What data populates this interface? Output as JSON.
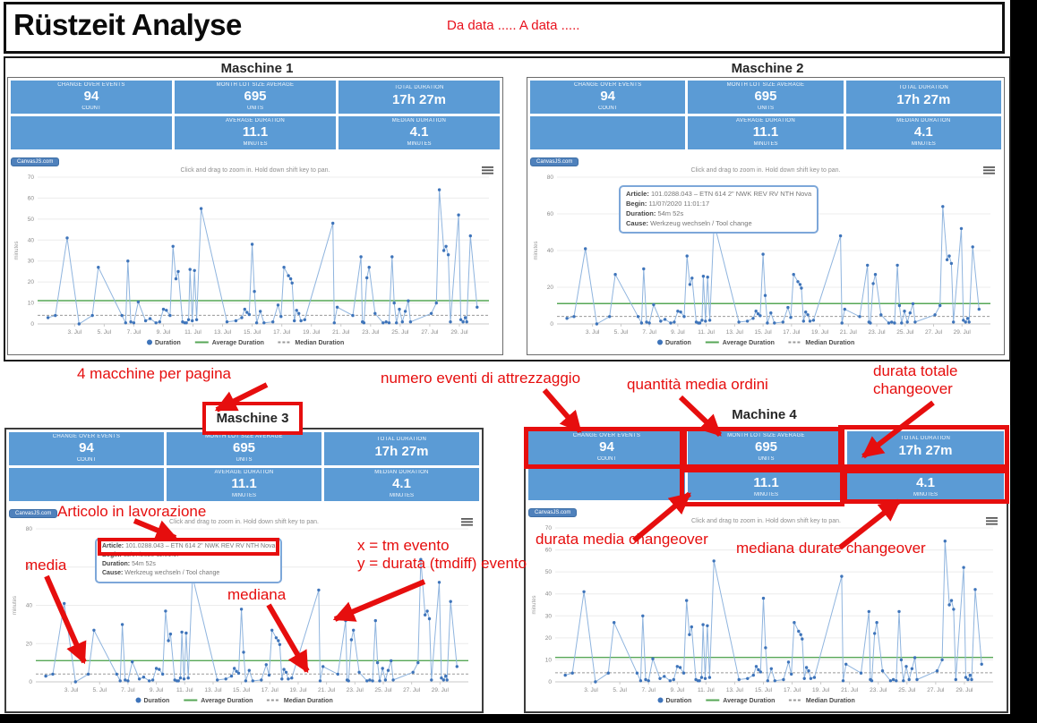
{
  "page": {
    "title": "Rüstzeit Analyse",
    "date_note": "Da data ..... A data .....",
    "watermark": "CanvasJS.com"
  },
  "kpi": {
    "tiles": [
      {
        "label": "CHANGE OVER EVENTS",
        "value": "94",
        "unit": "COUNT"
      },
      {
        "label": "MONTH LOT SIZE AVERAGE",
        "value": "695",
        "unit": "UNITS"
      },
      {
        "label": "TOTAL DURATION",
        "value": "17h 27m",
        "unit": ""
      },
      {
        "label": "",
        "value": "",
        "unit": ""
      },
      {
        "label": "AVERAGE DURATION",
        "value": "11.1",
        "unit": "MINUTES"
      },
      {
        "label": "MEDIAN DURATION",
        "value": "4.1",
        "unit": "MINUTES"
      }
    ]
  },
  "machines": [
    {
      "title": "Maschine 1",
      "y_max": 70,
      "y_step": 10
    },
    {
      "title": "Maschine 2",
      "y_max": 80,
      "y_step": 20
    },
    {
      "title": "Maschine 3",
      "y_max": 80,
      "y_step": 20
    },
    {
      "title": "Machine 4",
      "y_max": 70,
      "y_step": 10
    }
  ],
  "tooltip": {
    "article_label": "Article:",
    "article": "101.0288.043 – ETN 614 2\" NWK REV RV NTH Nova",
    "begin_label": "Begin:",
    "begin": "11/07/2020 11:01:17",
    "duration_label": "Duration:",
    "duration": "54m 52s",
    "cause_label": "Cause:",
    "cause": "Werkzeug wechseln / Tool change"
  },
  "annotations": {
    "per_page": "4 macchine per pagina",
    "events_count": "numero eventi di attrezzaggio",
    "avg_order_qty": "quantità media ordini",
    "total_duration": "durata totale changeover",
    "avg_duration": "durata media changeover",
    "median_duration": "mediana durate changeover",
    "article": "Articolo in lavorazione",
    "media": "media",
    "mediana": "mediana",
    "x_note": "x = tm evento",
    "y_note": "y = durata (tmdiff) evento"
  },
  "chart_data": {
    "type": "line",
    "title": "",
    "xlabel": "",
    "ylabel": "minutes",
    "hint": "Click and drag to zoom in. Hold down shift key to pan.",
    "grid": true,
    "legend_position": "bottom",
    "x_range": [
      0.5,
      31
    ],
    "x_tick_days": [
      3,
      5,
      7,
      9,
      11,
      13,
      15,
      17,
      19,
      21,
      23,
      25,
      27,
      29
    ],
    "x_tick_labels": [
      "3. Jul",
      "5. Jul",
      "7. Jul",
      "9. Jul",
      "11. Jul",
      "13. Jul",
      "15. Jul",
      "17. Jul",
      "19. Jul",
      "21. Jul",
      "23. Jul",
      "25. Jul",
      "27. Jul",
      "29. Jul"
    ],
    "legend": [
      "Duration",
      "Average Duration",
      "Median Duration"
    ],
    "colors": {
      "line": "#8fb4de",
      "marker": "#3e74ba",
      "average": "#57a757",
      "median": "#9a9a9a"
    },
    "series": [
      {
        "name": "Duration",
        "type": "line_markers",
        "points": [
          [
            1.2,
            3
          ],
          [
            1.7,
            4
          ],
          [
            2.5,
            41
          ],
          [
            3.3,
            0
          ],
          [
            4.2,
            4
          ],
          [
            4.6,
            27
          ],
          [
            6.2,
            4
          ],
          [
            6.45,
            0.5
          ],
          [
            6.6,
            30
          ],
          [
            6.8,
            1
          ],
          [
            7.0,
            0.5
          ],
          [
            7.3,
            10.5
          ],
          [
            7.8,
            1.5
          ],
          [
            8.1,
            2.5
          ],
          [
            8.5,
            0.5
          ],
          [
            8.75,
            1
          ],
          [
            9.0,
            7
          ],
          [
            9.2,
            6.5
          ],
          [
            9.45,
            4
          ],
          [
            9.65,
            37
          ],
          [
            9.85,
            21.5
          ],
          [
            10.0,
            25
          ],
          [
            10.3,
            1
          ],
          [
            10.45,
            0.5
          ],
          [
            10.55,
            0.5
          ],
          [
            10.7,
            2
          ],
          [
            10.8,
            26
          ],
          [
            10.95,
            1.5
          ],
          [
            11.1,
            25.5
          ],
          [
            11.25,
            2
          ],
          [
            11.55,
            55
          ],
          [
            13.3,
            1
          ],
          [
            13.9,
            1.5
          ],
          [
            14.3,
            3
          ],
          [
            14.5,
            7
          ],
          [
            14.65,
            5.5
          ],
          [
            14.8,
            4.5
          ],
          [
            15.0,
            38
          ],
          [
            15.15,
            15.5
          ],
          [
            15.3,
            0.5
          ],
          [
            15.55,
            6
          ],
          [
            15.8,
            0.5
          ],
          [
            16.4,
            1
          ],
          [
            16.75,
            9
          ],
          [
            16.95,
            3.5
          ],
          [
            17.15,
            27
          ],
          [
            17.45,
            23
          ],
          [
            17.6,
            21.5
          ],
          [
            17.7,
            19.5
          ],
          [
            17.85,
            1.5
          ],
          [
            18.0,
            6.5
          ],
          [
            18.15,
            5
          ],
          [
            18.3,
            1.5
          ],
          [
            18.55,
            2
          ],
          [
            20.45,
            48
          ],
          [
            20.55,
            0.5
          ],
          [
            20.75,
            8
          ],
          [
            21.8,
            4
          ],
          [
            22.35,
            32
          ],
          [
            22.45,
            1
          ],
          [
            22.55,
            0.5
          ],
          [
            22.75,
            22
          ],
          [
            22.9,
            27
          ],
          [
            23.3,
            5
          ],
          [
            23.85,
            0.5
          ],
          [
            24.05,
            1
          ],
          [
            24.25,
            0.5
          ],
          [
            24.45,
            32
          ],
          [
            24.6,
            10
          ],
          [
            24.75,
            0.5
          ],
          [
            24.95,
            7
          ],
          [
            25.15,
            1
          ],
          [
            25.35,
            6
          ],
          [
            25.55,
            11
          ],
          [
            25.7,
            1
          ],
          [
            27.1,
            5
          ],
          [
            27.45,
            10
          ],
          [
            27.65,
            64
          ],
          [
            27.95,
            35
          ],
          [
            28.1,
            37
          ],
          [
            28.25,
            33
          ],
          [
            28.4,
            1
          ],
          [
            28.95,
            52
          ],
          [
            29.1,
            2
          ],
          [
            29.25,
            1
          ],
          [
            29.4,
            3
          ],
          [
            29.5,
            1
          ],
          [
            29.75,
            42
          ],
          [
            30.2,
            8
          ]
        ]
      },
      {
        "name": "Average Duration",
        "type": "hline",
        "value": 11.1
      },
      {
        "name": "Median Duration",
        "type": "hline_dashed",
        "value": 4.1
      }
    ]
  }
}
